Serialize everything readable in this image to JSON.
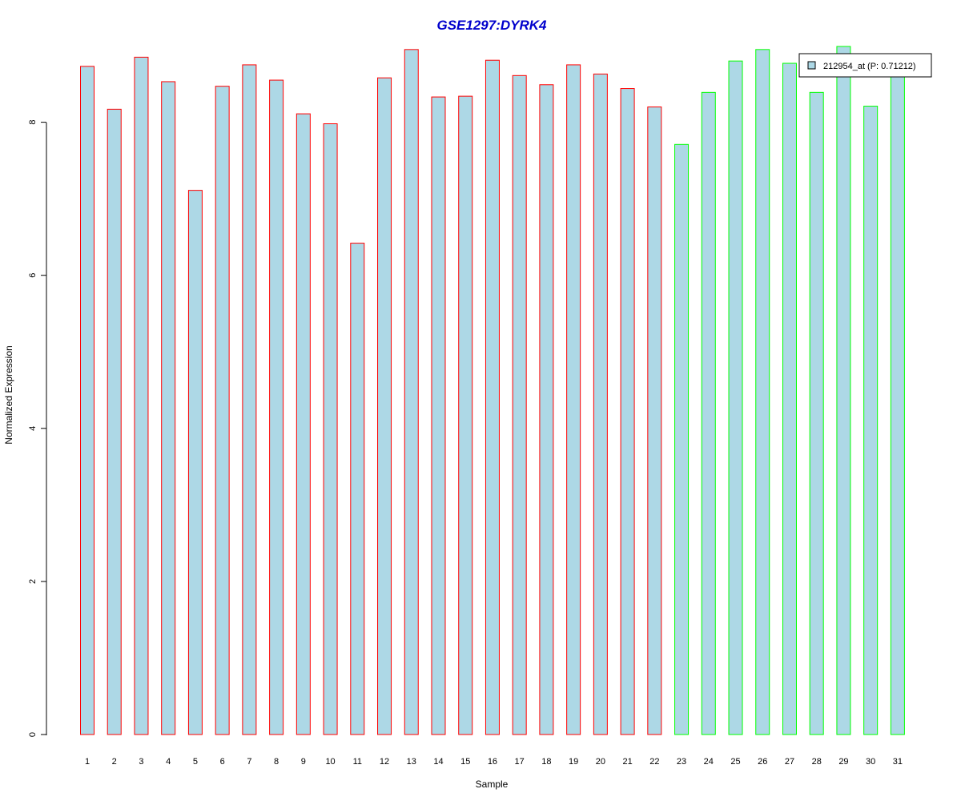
{
  "chart_data": {
    "type": "bar",
    "title": "GSE1297:DYRK4",
    "xlabel": "Sample",
    "ylabel": "Normalized Expression",
    "ylim": [
      0,
      9
    ],
    "yticks": [
      0,
      2,
      4,
      6,
      8
    ],
    "categories": [
      "1",
      "2",
      "3",
      "4",
      "5",
      "6",
      "7",
      "8",
      "9",
      "10",
      "11",
      "12",
      "13",
      "14",
      "15",
      "16",
      "17",
      "18",
      "19",
      "20",
      "21",
      "22",
      "23",
      "24",
      "25",
      "26",
      "27",
      "28",
      "29",
      "30",
      "31"
    ],
    "values": [
      8.73,
      8.17,
      8.85,
      8.53,
      7.11,
      8.47,
      8.75,
      8.55,
      8.11,
      7.98,
      6.42,
      8.58,
      8.95,
      8.33,
      8.34,
      8.81,
      8.61,
      8.49,
      8.75,
      8.63,
      8.44,
      8.2,
      7.71,
      8.39,
      8.8,
      8.95,
      8.77,
      8.39,
      8.99,
      8.21,
      8.66
    ],
    "groups": [
      "red",
      "red",
      "red",
      "red",
      "red",
      "red",
      "red",
      "red",
      "red",
      "red",
      "red",
      "red",
      "red",
      "red",
      "red",
      "red",
      "red",
      "red",
      "red",
      "red",
      "red",
      "red",
      "green",
      "green",
      "green",
      "green",
      "green",
      "green",
      "green",
      "green",
      "green"
    ],
    "bar_fill": "#add8e6",
    "border_colors": {
      "red": "#ff0000",
      "green": "#00ff00"
    },
    "title_color": "#0000cc",
    "grid": false,
    "legend": {
      "placement": "top-right",
      "entries": [
        {
          "label": "212954_at (P: 0.71212)",
          "color": "#add8e6"
        }
      ]
    }
  }
}
